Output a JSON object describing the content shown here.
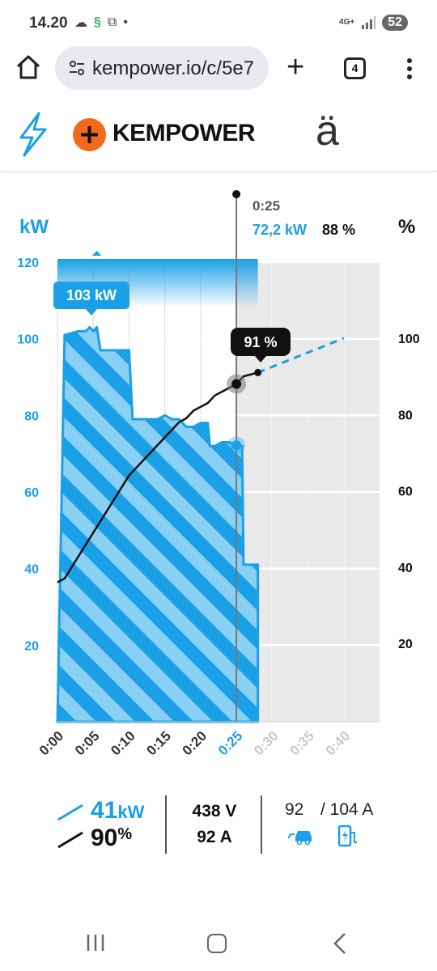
{
  "status_bar": {
    "time": "14.20",
    "network": "4G+",
    "battery": "52",
    "icons": [
      "cloud-icon",
      "s-app-icon",
      "screenshot-icon",
      "dot-icon",
      "signal-icon"
    ]
  },
  "browser": {
    "url": "kempower.io/c/5e7",
    "tab_count": "4",
    "icons": [
      "home-icon",
      "site-settings-icon",
      "new-tab-icon",
      "tabs-icon",
      "more-menu-icon"
    ]
  },
  "site": {
    "brand": "KEMPOWER",
    "language_label": "ä",
    "icons": [
      "bolt-icon",
      "kempower-plus-logo-icon"
    ]
  },
  "chart_labels": {
    "y_left_unit": "kW",
    "y_right_unit": "%",
    "peak_label": "103 kW",
    "tooltip_time": "0:25",
    "tooltip_power": "72,2 kW",
    "tooltip_soc": "88 %",
    "soc_badge": "91 %"
  },
  "chart_data": {
    "type": "line",
    "x_unit": "time (h:mm)",
    "xlim": [
      0,
      45
    ],
    "x_ticks": [
      "0:00",
      "0:05",
      "0:10",
      "0:15",
      "0:20",
      "0:25",
      "0:30",
      "0:35",
      "0:40"
    ],
    "x_tick_state": [
      "past",
      "past",
      "past",
      "past",
      "past",
      "current",
      "future",
      "future",
      "future"
    ],
    "y_left": {
      "label": "kW",
      "lim": [
        0,
        120
      ],
      "ticks": [
        "20",
        "40",
        "60",
        "80",
        "100",
        "120"
      ]
    },
    "y_right": {
      "label": "%",
      "ticks": [
        "20",
        "40",
        "60",
        "80",
        "100"
      ]
    },
    "series": [
      {
        "name": "kW",
        "color": "#1aa0e6",
        "style": "filled-hatched",
        "x": [
          0,
          1,
          3,
          4,
          4.5,
          5,
          5.5,
          6,
          7,
          8,
          9,
          10,
          10.5,
          11,
          12,
          13,
          14,
          15,
          16,
          17,
          18,
          19,
          20,
          21,
          21.3,
          22,
          23,
          24,
          25,
          25.8,
          26,
          27,
          28
        ],
        "y": [
          0,
          101,
          102,
          102,
          103,
          102,
          103,
          97,
          97,
          97,
          97,
          97,
          79,
          79,
          79,
          79,
          79,
          80,
          79,
          79,
          77,
          77,
          78,
          78,
          72,
          72,
          73,
          73,
          72.2,
          72,
          41,
          41,
          41
        ]
      },
      {
        "name": "%",
        "color": "#111111",
        "style": "line",
        "x": [
          0,
          1,
          2,
          3,
          4,
          5,
          6,
          7,
          8,
          9,
          10,
          11,
          12,
          13,
          14,
          15,
          16,
          17,
          18,
          19,
          20,
          21,
          22,
          23,
          24,
          25,
          26,
          27,
          28
        ],
        "y": [
          36,
          37,
          40,
          43,
          46,
          49,
          52,
          55,
          58,
          61,
          64,
          66,
          68,
          70,
          72,
          74,
          76,
          78,
          79,
          81,
          82,
          83,
          85,
          86,
          87,
          88,
          90,
          90.5,
          91
        ]
      },
      {
        "name": "% forecast",
        "color": "#1aa0e6",
        "style": "dashed",
        "x": [
          28,
          40
        ],
        "y": [
          91,
          100
        ]
      }
    ],
    "cursor": {
      "x": 25,
      "kw": 72.2,
      "soc": 88
    },
    "grid": true
  },
  "readouts": {
    "power_value": "41",
    "power_unit": "kW",
    "soc_value": "90",
    "soc_unit": "%",
    "voltage": "438 V",
    "current": "92 A",
    "current_actual": "92",
    "current_max": "/ 104 A",
    "icons": [
      "car-icon",
      "charger-icon"
    ]
  },
  "nav": {
    "icons": [
      "recent-apps-icon",
      "home-icon",
      "back-icon"
    ]
  }
}
